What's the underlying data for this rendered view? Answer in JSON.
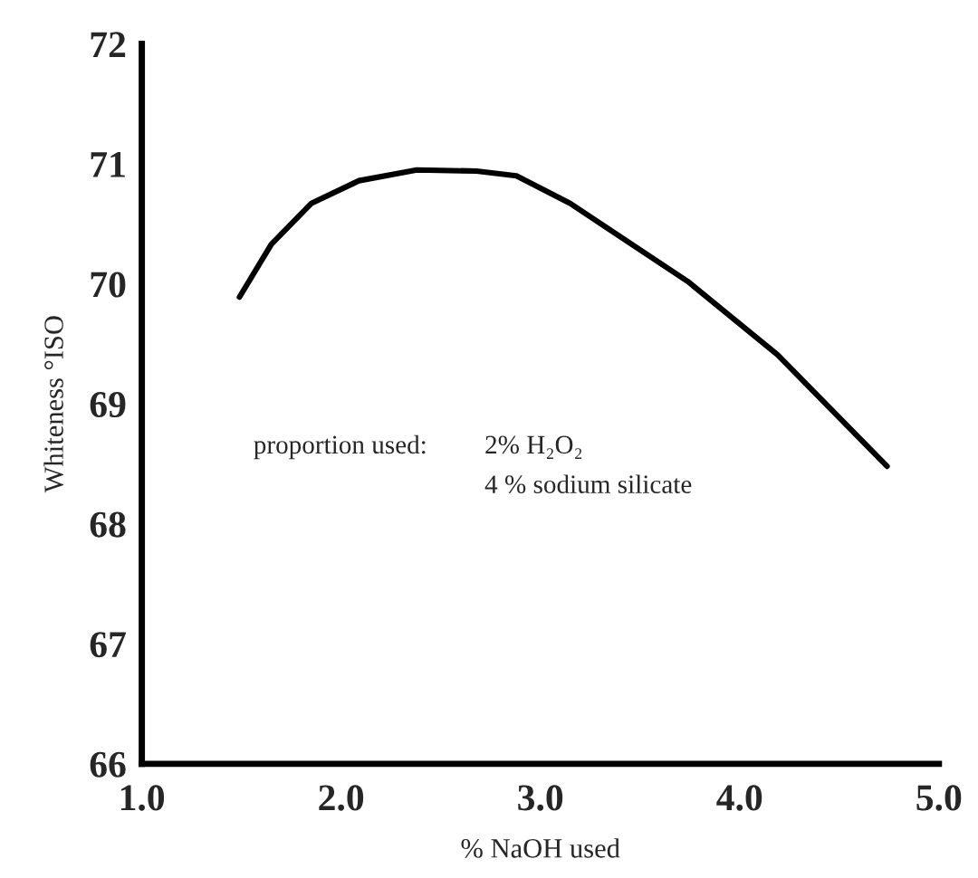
{
  "chart_data": {
    "type": "line",
    "xlabel": "% NaOH used",
    "ylabel": "Whiteness °ISO",
    "x": [
      1.49,
      1.65,
      1.85,
      2.09,
      2.38,
      2.68,
      2.88,
      3.15,
      3.74,
      4.19,
      4.74
    ],
    "series": [
      {
        "color": "#000000",
        "values": [
          69.89,
          70.33,
          70.67,
          70.86,
          70.95,
          70.94,
          70.9,
          70.67,
          70.02,
          69.41,
          68.48
        ]
      }
    ],
    "xlim": [
      1.0,
      5.0
    ],
    "xticks": [
      {
        "value": 1,
        "label": "1.0"
      },
      {
        "value": 2,
        "label": "2.0"
      },
      {
        "value": 3,
        "label": "3.0"
      },
      {
        "value": 4,
        "label": "4.0"
      },
      {
        "value": 5,
        "label": "5.0"
      }
    ],
    "ylim": [
      66,
      72
    ],
    "yticks": [
      66,
      67,
      68,
      69,
      70,
      71,
      72
    ],
    "annotations": [
      "proportion used:",
      "2% H₂O₂",
      "4 % sodium silicate"
    ],
    "grid": false,
    "marker": "none",
    "line_style": "solid",
    "legend": false
  }
}
